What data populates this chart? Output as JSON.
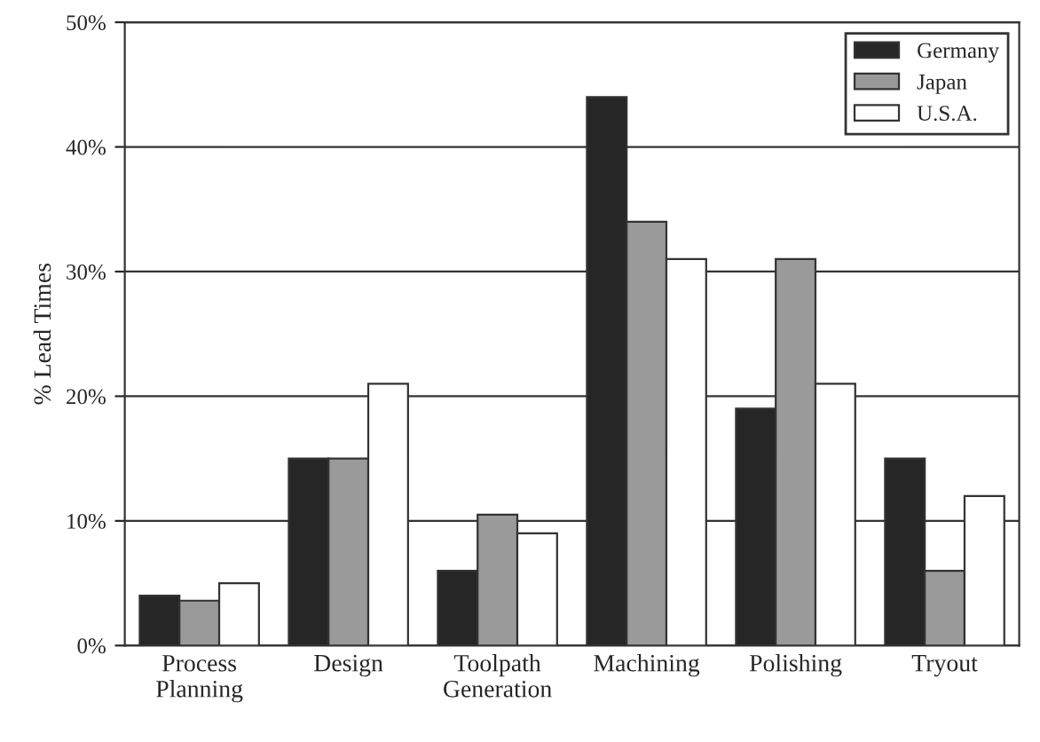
{
  "chart_data": {
    "type": "bar",
    "ylabel": "% Lead Times",
    "categories": [
      "Process\nPlanning",
      "Design",
      "Toolpath\nGeneration",
      "Machining",
      "Polishing",
      "Tryout"
    ],
    "series": [
      {
        "name": "Germany",
        "color": "#262626",
        "values": [
          4,
          15,
          6,
          44,
          19,
          15
        ]
      },
      {
        "name": "Japan",
        "color": "#9a9a9a",
        "values": [
          3.6,
          15,
          10.5,
          34,
          31,
          6
        ]
      },
      {
        "name": "U.S.A.",
        "color": "#ffffff",
        "values": [
          5,
          21,
          9,
          31,
          21,
          12
        ]
      }
    ],
    "ylim": [
      0,
      50
    ],
    "yticks": [
      {
        "value": 0,
        "label": "0%"
      },
      {
        "value": 10,
        "label": "10%"
      },
      {
        "value": 20,
        "label": "20%"
      },
      {
        "value": 30,
        "label": "30%"
      },
      {
        "value": 40,
        "label": "40%"
      },
      {
        "value": 50,
        "label": "50%"
      }
    ],
    "grid": "y",
    "legend": "top right"
  }
}
